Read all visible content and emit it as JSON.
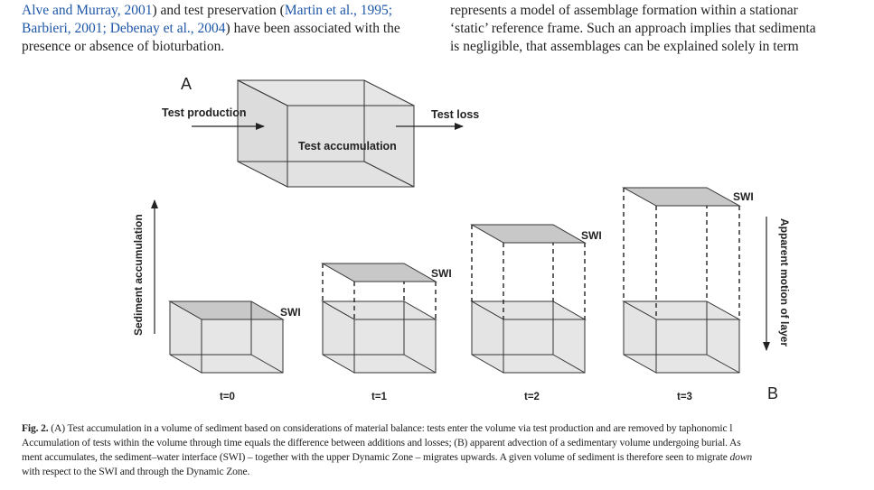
{
  "top_text": {
    "left_col": {
      "line1": {
        "pre": "",
        "link1": "Alve and Murray, 2001",
        "mid": ") and test preservation (",
        "link2": "Martin et al., 1995;",
        "post": ""
      },
      "line2": {
        "link1": "Barbieri, 2001; Debenay et al., 2004",
        "post": ") have been associated with the"
      },
      "line3": "presence or absence of bioturbation."
    },
    "right_col": {
      "line1": "represents a model of assemblage formation within a stationar",
      "line2": "‘static’ reference frame. Such an approach implies that sedimenta",
      "line3": "is negligible, that assemblages can be explained solely in term"
    }
  },
  "figure": {
    "panel_a": {
      "label": "A",
      "test_production": "Test production",
      "test_accumulation": "Test accumulation",
      "test_loss": "Test loss"
    },
    "panel_b": {
      "label": "B",
      "left_axis": "Sediment accumulation",
      "right_axis": "Apparent motion of layer",
      "swi_label": "SWI",
      "time_labels": [
        "t=0",
        "t=1",
        "t=2",
        "t=3"
      ]
    }
  },
  "caption": {
    "fig_label": "Fig. 2.",
    "line1": " (A) Test accumulation in a volume of sediment based on considerations of material balance: tests enter the volume via test production and are removed by taphonomic l",
    "line2": "Accumulation of tests within the volume through time equals the difference between additions and losses; (B) apparent advection of a sedimentary volume undergoing burial. As",
    "line3_pre": "ment accumulates, the sediment–water interface (SWI) – together with the upper Dynamic Zone – migrates upwards. A given volume of sediment is therefore seen to migrate ",
    "line3_em": "down",
    "line4": "with respect to the SWI and through the Dynamic Zone."
  }
}
